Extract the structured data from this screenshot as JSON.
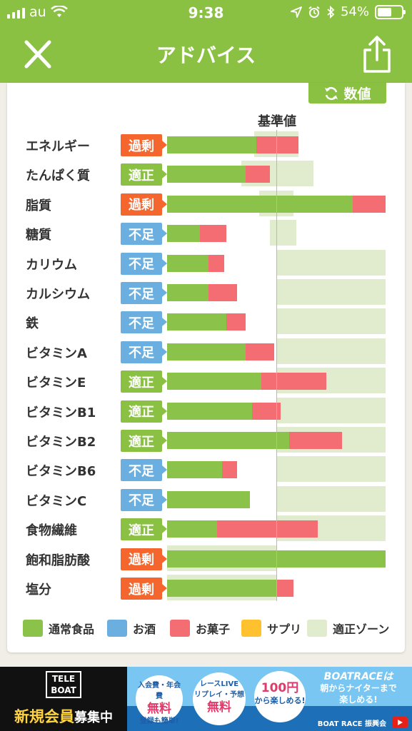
{
  "status_bar": {
    "carrier": "au",
    "time": "9:38",
    "battery": "54%"
  },
  "nav": {
    "title": "アドバイス"
  },
  "toggle": {
    "label": "数値"
  },
  "reference_label": "基準値",
  "colors": {
    "green_bar": "#8bc34a",
    "pink_bar": "#f46d72",
    "zone": "#e0eccd",
    "tag_over": "#f5662e",
    "tag_ok": "#8bc142",
    "tag_under": "#6aafe0",
    "blue": "#6aafe0",
    "yellow": "#ffc12d"
  },
  "nutrients": [
    {
      "name": "エネルギー",
      "status": "過剰",
      "kind": "over",
      "regular": 0.41,
      "snack": 0.19,
      "zone": [
        0.4,
        0.6
      ]
    },
    {
      "name": "たんぱく質",
      "status": "適正",
      "kind": "ok",
      "regular": 0.36,
      "snack": 0.11,
      "zone": [
        0.34,
        0.67
      ]
    },
    {
      "name": "脂質",
      "status": "過剰",
      "kind": "over",
      "regular": 0.85,
      "snack": 0.15,
      "zone": [
        0.42,
        0.58
      ]
    },
    {
      "name": "糖質",
      "status": "不足",
      "kind": "under",
      "regular": 0.15,
      "snack": 0.12,
      "zone": [
        0.47,
        0.59
      ]
    },
    {
      "name": "カリウム",
      "status": "不足",
      "kind": "under",
      "regular": 0.19,
      "snack": 0.07,
      "zone": [
        0.5,
        1.0
      ]
    },
    {
      "name": "カルシウム",
      "status": "不足",
      "kind": "under",
      "regular": 0.19,
      "snack": 0.13,
      "zone": [
        0.5,
        1.0
      ]
    },
    {
      "name": "鉄",
      "status": "不足",
      "kind": "under",
      "regular": 0.27,
      "snack": 0.09,
      "zone": [
        0.5,
        1.0
      ]
    },
    {
      "name": "ビタミンA",
      "status": "不足",
      "kind": "under",
      "regular": 0.36,
      "snack": 0.13,
      "zone": [
        0.5,
        1.0
      ]
    },
    {
      "name": "ビタミンE",
      "status": "適正",
      "kind": "ok",
      "regular": 0.43,
      "snack": 0.3,
      "zone": [
        0.5,
        1.0
      ]
    },
    {
      "name": "ビタミンB1",
      "status": "適正",
      "kind": "ok",
      "regular": 0.39,
      "snack": 0.13,
      "zone": [
        0.5,
        1.0
      ]
    },
    {
      "name": "ビタミンB2",
      "status": "適正",
      "kind": "ok",
      "regular": 0.56,
      "snack": 0.24,
      "zone": [
        0.5,
        1.0
      ]
    },
    {
      "name": "ビタミンB6",
      "status": "不足",
      "kind": "under",
      "regular": 0.25,
      "snack": 0.07,
      "zone": [
        0.5,
        1.0
      ]
    },
    {
      "name": "ビタミンC",
      "status": "不足",
      "kind": "under",
      "regular": 0.38,
      "snack": 0.0,
      "zone": [
        0.5,
        1.0
      ]
    },
    {
      "name": "食物繊維",
      "status": "適正",
      "kind": "ok",
      "regular": 0.23,
      "snack": 0.46,
      "zone": [
        0.5,
        1.0
      ]
    },
    {
      "name": "飽和脂肪酸",
      "status": "過剰",
      "kind": "over",
      "regular": 1.0,
      "snack": 0.0,
      "zone": [
        0.0,
        0.5
      ]
    },
    {
      "name": "塩分",
      "status": "過剰",
      "kind": "over",
      "regular": 0.5,
      "snack": 0.08,
      "zone": [
        0.0,
        0.5
      ]
    }
  ],
  "legend": [
    {
      "label": "通常食品",
      "color": "#8bc34a"
    },
    {
      "label": "お酒",
      "color": "#6aafe0"
    },
    {
      "label": "お菓子",
      "color": "#f46d72"
    },
    {
      "label": "サプリ",
      "color": "#ffc12d"
    },
    {
      "label": "適正ゾーン",
      "color": "#e0eccd"
    }
  ],
  "ad": {
    "teleboat_line1": "TELE",
    "teleboat_line2": "BOAT",
    "member_big": "新規会員",
    "member_small": "募集中",
    "bubble1_top": "入会費・年会費",
    "bubble1_big": "無料",
    "bubble1_bottom": "登録も簡単!",
    "bubble2_top": "レースLIVE",
    "bubble2_mid": "リプレイ・予想",
    "bubble2_big": "無料",
    "bubble3_big": "100円",
    "bubble3_bottom": "から楽しめる!",
    "brand_title": "BOATRACEは",
    "brand_line1": "朝からナイターまで",
    "brand_line2": "楽しめる!",
    "footer": "BOAT RACE 振興会"
  }
}
